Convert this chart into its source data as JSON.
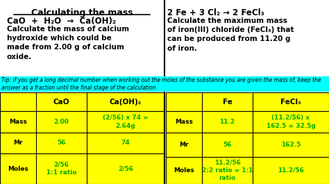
{
  "fig_width": 4.74,
  "fig_height": 2.65,
  "dpi": 100,
  "bg_color": "#ffffff",
  "yellow": "#ffff00",
  "cyan": "#00ffff",
  "green": "#00aa00",
  "black": "#000000",
  "left_title": "Calculating the mass",
  "left_equation": "CaO  +  H₂O  →  Ca(OH)₂",
  "left_desc": "Calculate the mass of calcium\nhydroxide which could be\nmade from 2.00 g of calcium\noxide.",
  "tip": "Tip: if you get a long decimal number when working out the moles of the substance you are given the mass of, keep the\nanswer as a fraction until the final stage of the calculation",
  "right_equation": "2 Fe + 3 Cl₂ → 2 FeCl₃",
  "right_desc": "Calculate the maximum mass\nof iron(III) chloride (FeCl₃) that\ncan be produced from 11.20 g\nof iron.",
  "left_table_headers": [
    "",
    "CaO",
    "Ca(OH)₂"
  ],
  "left_table_rows": [
    [
      "Mass",
      "2.00",
      "(2/56) x 74 =\n2.64g"
    ],
    [
      "Mr",
      "56",
      "74"
    ],
    [
      "Moles",
      "2/56\n1:1 ratio",
      "2/56"
    ]
  ],
  "right_table_headers": [
    "",
    "Fe",
    "FeCl₃"
  ],
  "right_table_rows": [
    [
      "Mass",
      "11.2",
      "(11.2/56) x\n162.5 = 32.5g"
    ],
    [
      "Mr",
      "56",
      "162.5"
    ],
    [
      "Moles",
      "11.2/56\n2:2 ratio = 1:1\nratio",
      "11.2/56"
    ]
  ]
}
